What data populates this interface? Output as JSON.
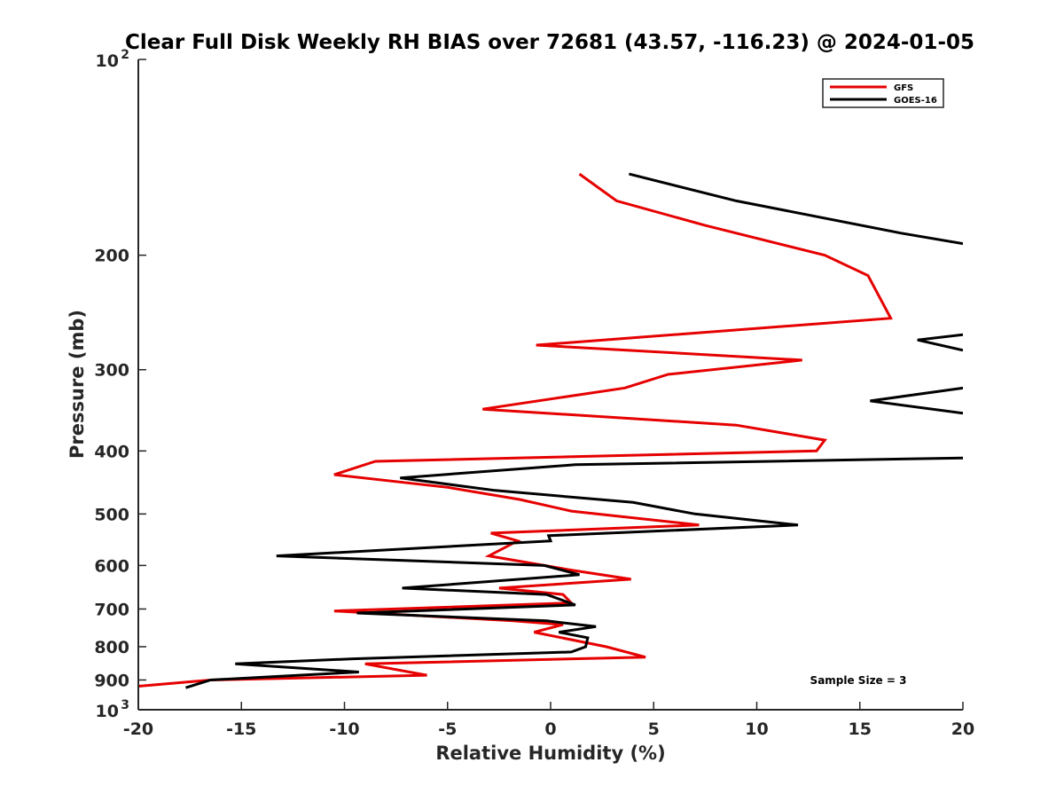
{
  "chart_data": {
    "type": "line",
    "title": "Clear Full Disk Weekly RH BIAS over 72681 (43.57, -116.23) @ 2024-01-05",
    "xlabel": "Relative Humidity (%)",
    "ylabel": "Pressure (mb)",
    "xlim": [
      -20,
      20
    ],
    "ylim": [
      100,
      1000
    ],
    "y_scale": "log",
    "y_reversed": true,
    "grid": false,
    "legend_position": "top-right",
    "x_ticks": [
      -20,
      -15,
      -10,
      -5,
      0,
      5,
      10,
      15,
      20
    ],
    "x_tick_labels": [
      "-20",
      "-15",
      "-10",
      "-5",
      "0",
      "5",
      "10",
      "15",
      "20"
    ],
    "y_ticks": [
      200,
      300,
      400,
      500,
      600,
      700,
      800,
      900
    ],
    "y_tick_labels": [
      "200",
      "300",
      "400",
      "500",
      "600",
      "700",
      "800",
      "900"
    ],
    "y_decade_labels": [
      {
        "base": "10",
        "exp": "2",
        "value": 100
      },
      {
        "base": "10",
        "exp": "3",
        "value": 1000
      }
    ],
    "series": [
      {
        "name": "GFS",
        "color": "#e60000",
        "points": [
          [
            1.4,
            150
          ],
          [
            3.2,
            165
          ],
          [
            7.5,
            180
          ],
          [
            13.3,
            200
          ],
          [
            15.4,
            215
          ],
          [
            16.5,
            250
          ],
          [
            -0.7,
            275
          ],
          [
            12.2,
            290
          ],
          [
            5.7,
            305
          ],
          [
            3.6,
            320
          ],
          [
            -3.3,
            345
          ],
          [
            9.0,
            365
          ],
          [
            13.3,
            385
          ],
          [
            12.9,
            400
          ],
          [
            -8.5,
            415
          ],
          [
            -10.5,
            435
          ],
          [
            -5.0,
            455
          ],
          [
            -1.5,
            475
          ],
          [
            1.0,
            495
          ],
          [
            7.2,
            520
          ],
          [
            -2.9,
            535
          ],
          [
            -1.6,
            550
          ],
          [
            -3.0,
            580
          ],
          [
            1.0,
            610
          ],
          [
            3.9,
            630
          ],
          [
            -2.5,
            650
          ],
          [
            0.6,
            665
          ],
          [
            1.0,
            685
          ],
          [
            -10.5,
            705
          ],
          [
            -1.8,
            730
          ],
          [
            0.6,
            740
          ],
          [
            -0.8,
            760
          ],
          [
            2.7,
            800
          ],
          [
            4.6,
            830
          ],
          [
            -9.0,
            850
          ],
          [
            -6.0,
            885
          ],
          [
            -16.5,
            900
          ],
          [
            -20,
            920
          ]
        ]
      },
      {
        "name": "GOES-16",
        "color": "#000000",
        "segments": [
          [
            [
              3.8,
              150
            ],
            [
              9.0,
              165
            ],
            [
              17.0,
              185
            ],
            [
              20,
              192
            ]
          ],
          [
            [
              20,
              265
            ],
            [
              17.8,
              270
            ],
            [
              20,
              280
            ]
          ],
          [
            [
              20,
              320
            ],
            [
              15.5,
              335
            ],
            [
              20,
              350
            ]
          ],
          [
            [
              20,
              410
            ],
            [
              1.2,
              420
            ],
            [
              -7.3,
              440
            ],
            [
              -2.7,
              460
            ],
            [
              4.0,
              480
            ],
            [
              7.0,
              500
            ],
            [
              12.0,
              520
            ],
            [
              -0.1,
              540
            ],
            [
              0.0,
              550
            ],
            [
              -13.3,
              580
            ],
            [
              -0.3,
              600
            ],
            [
              1.4,
              620
            ],
            [
              -7.2,
              650
            ],
            [
              -0.2,
              665
            ],
            [
              1.2,
              690
            ],
            [
              -9.4,
              710
            ],
            [
              -0.2,
              730
            ],
            [
              2.2,
              745
            ],
            [
              0.4,
              760
            ],
            [
              1.8,
              775
            ],
            [
              1.7,
              800
            ],
            [
              1.0,
              815
            ],
            [
              -9.6,
              835
            ],
            [
              -15.3,
              850
            ],
            [
              -9.3,
              875
            ],
            [
              -16.5,
              900
            ],
            [
              -17.7,
              925
            ]
          ]
        ]
      }
    ],
    "annotations": [
      "Sample Size = 3"
    ]
  }
}
